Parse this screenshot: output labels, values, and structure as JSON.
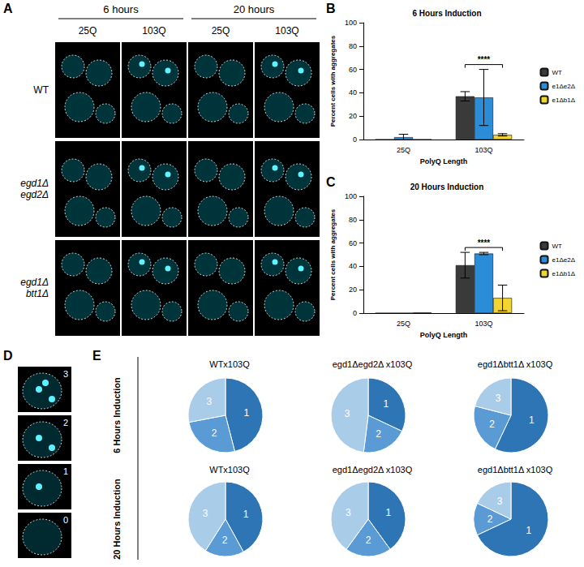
{
  "panel_A": {
    "letter": "A",
    "time_headers": [
      "6 hours",
      "20 hours"
    ],
    "column_labels": [
      "25Q",
      "103Q",
      "25Q",
      "103Q"
    ],
    "row_labels": [
      "WT",
      "egd1Δ egd2Δ",
      "egd1Δ btt1Δ"
    ]
  },
  "panel_D": {
    "letter": "D",
    "labels": [
      "3",
      "2",
      "1",
      "0"
    ]
  },
  "panel_E": {
    "letter": "E",
    "row_labels": [
      "6 Hours Induction",
      "20 Hours Induction"
    ]
  },
  "chart_data": [
    {
      "panel_letter": "B",
      "type": "bar",
      "title": "6 Hours Induction",
      "x_label": "PolyQ Length",
      "y_label": "Percent cells with aggregates",
      "categories": [
        "25Q",
        "103Q"
      ],
      "series": [
        {
          "name": "WT",
          "color": "#3a3a3a",
          "values": [
            0,
            37
          ],
          "errors": [
            0,
            4
          ]
        },
        {
          "name": "e1Δe2Δ",
          "color": "#2b8cd8",
          "values": [
            2,
            36
          ],
          "errors": [
            2.5,
            24
          ]
        },
        {
          "name": "e1Δb1Δ",
          "color": "#f2d52f",
          "values": [
            0,
            4
          ],
          "errors": [
            0,
            1
          ]
        }
      ],
      "ylim": [
        0,
        100
      ],
      "yticks": [
        0,
        20,
        40,
        60,
        80,
        100
      ],
      "grid": false,
      "legend": "right",
      "annotations": [
        {
          "text": "****",
          "category": "103Q"
        }
      ]
    },
    {
      "panel_letter": "C",
      "type": "bar",
      "title": "20 Hours Induction",
      "x_label": "PolyQ Length",
      "y_label": "Percent cells with aggregates",
      "categories": [
        "25Q",
        "103Q"
      ],
      "series": [
        {
          "name": "WT",
          "color": "#3a3a3a",
          "values": [
            0,
            41
          ],
          "errors": [
            0,
            11
          ]
        },
        {
          "name": "e1Δe2Δ",
          "color": "#2b8cd8",
          "values": [
            0,
            51
          ],
          "errors": [
            0,
            1
          ]
        },
        {
          "name": "e1Δb1Δ",
          "color": "#f2d52f",
          "values": [
            0.5,
            13
          ],
          "errors": [
            0,
            11
          ]
        }
      ],
      "ylim": [
        0,
        100
      ],
      "yticks": [
        0,
        20,
        40,
        60,
        80,
        100
      ],
      "grid": false,
      "legend": "right",
      "annotations": [
        {
          "text": "****",
          "category": "103Q"
        }
      ]
    },
    {
      "type": "pie",
      "title": "WTx103Q",
      "categories": [
        "1",
        "2",
        "3"
      ],
      "values": [
        46,
        26,
        28
      ],
      "colors": [
        "#2e75b6",
        "#5b9bd5",
        "#a9cce9"
      ]
    },
    {
      "type": "pie",
      "title": "egd1Δegd2Δ x103Q",
      "categories": [
        "1",
        "2",
        "3"
      ],
      "values": [
        32,
        20,
        48
      ],
      "colors": [
        "#2e75b6",
        "#5b9bd5",
        "#a9cce9"
      ]
    },
    {
      "type": "pie",
      "title": "egd1Δbtt1Δ x103Q",
      "categories": [
        "1",
        "2",
        "3"
      ],
      "values": [
        57,
        22,
        21
      ],
      "colors": [
        "#2e75b6",
        "#5b9bd5",
        "#a9cce9"
      ]
    },
    {
      "type": "pie",
      "title": "WTx103Q",
      "categories": [
        "1",
        "2",
        "3"
      ],
      "values": [
        42,
        17,
        41
      ],
      "colors": [
        "#2e75b6",
        "#5b9bd5",
        "#a9cce9"
      ]
    },
    {
      "type": "pie",
      "title": "egd1Δegd2Δ x103Q",
      "categories": [
        "1",
        "2",
        "3"
      ],
      "values": [
        40,
        20,
        40
      ],
      "colors": [
        "#2e75b6",
        "#5b9bd5",
        "#a9cce9"
      ]
    },
    {
      "type": "pie",
      "title": "egd1Δbtt1Δ x103Q",
      "categories": [
        "1",
        "2",
        "3"
      ],
      "values": [
        68,
        14,
        18
      ],
      "colors": [
        "#2e75b6",
        "#5b9bd5",
        "#a9cce9"
      ]
    }
  ]
}
